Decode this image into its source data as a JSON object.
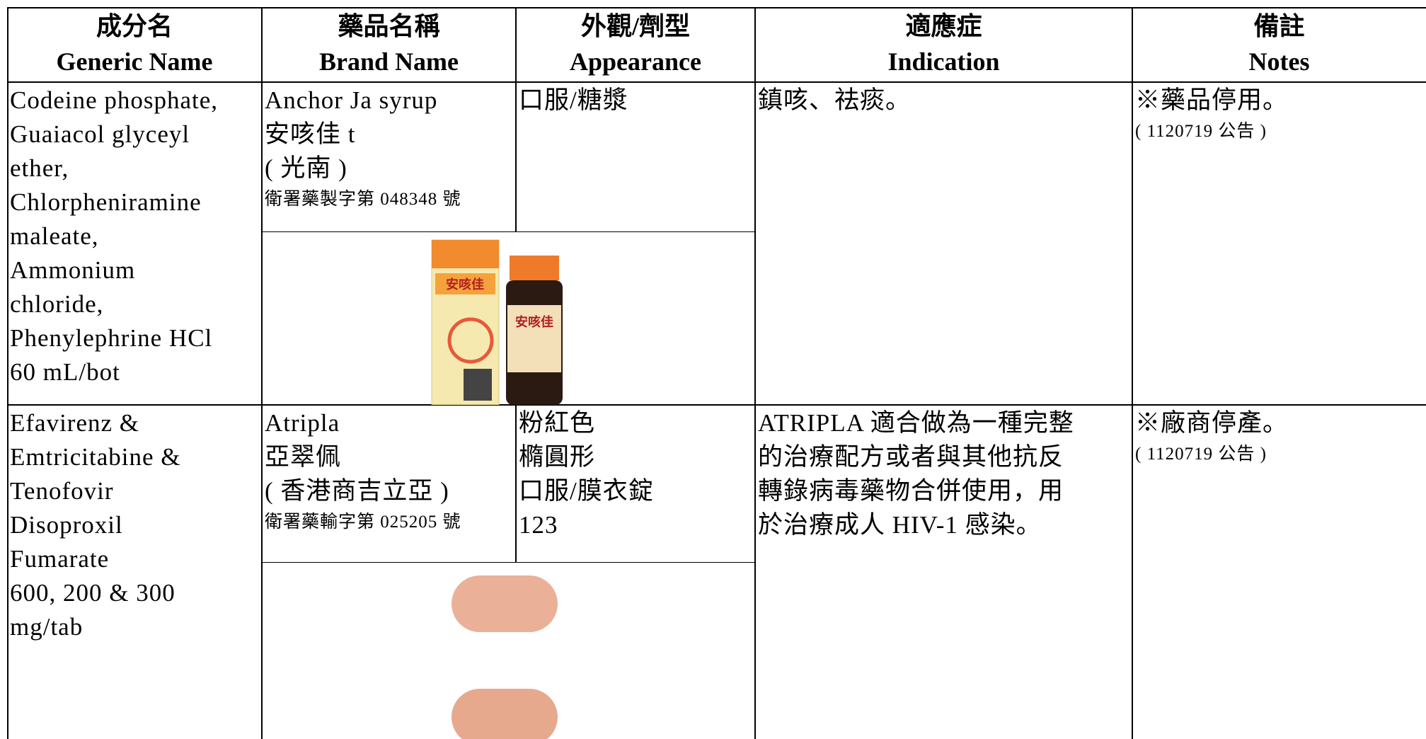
{
  "header": {
    "columns": [
      {
        "zh": "成分名",
        "en": "Generic Name"
      },
      {
        "zh": "藥品名稱",
        "en": "Brand Name"
      },
      {
        "zh": "外觀/劑型",
        "en": "Appearance"
      },
      {
        "zh": "適應症",
        "en": "Indication"
      },
      {
        "zh": "備註",
        "en": "Notes"
      }
    ]
  },
  "rows": [
    {
      "generic_name": [
        "Codeine phosphate,",
        "Guaiacol glyceyl",
        "ether,",
        "Chlorpheniramine",
        "maleate,",
        "Ammonium",
        "chloride,",
        "Phenylephrine HCl",
        "60 mL/bot"
      ],
      "brand_name": [
        "Anchor Ja syrup",
        "安咳佳 t",
        "( 光南 )"
      ],
      "license": "衛署藥製字第 048348 號",
      "appearance": [
        "口服/糖漿"
      ],
      "indication": [
        "鎮咳、祛痰。"
      ],
      "notes": "※藥品停用。",
      "announcement": "( 1120719 公告 )"
    },
    {
      "generic_name": [
        "Efavirenz &",
        "Emtricitabine &",
        "Tenofovir",
        "Disoproxil",
        "Fumarate",
        "600, 200 & 300",
        "mg/tab"
      ],
      "brand_name": [
        "Atripla",
        "亞翠佩",
        "( 香港商吉立亞 )"
      ],
      "license": "衛署藥輸字第 025205 號",
      "appearance": [
        "粉紅色",
        "橢圓形",
        "口服/膜衣錠",
        "123"
      ],
      "indication": [
        "ATRIPLA 適合做為一種完整",
        "的治療配方或者與其他抗反",
        "轉錄病毒藥物合併使用，用",
        "於治療成人 HIV-1 感染。"
      ],
      "notes": "※廠商停產。",
      "announcement": "( 1120719 公告 )"
    }
  ]
}
